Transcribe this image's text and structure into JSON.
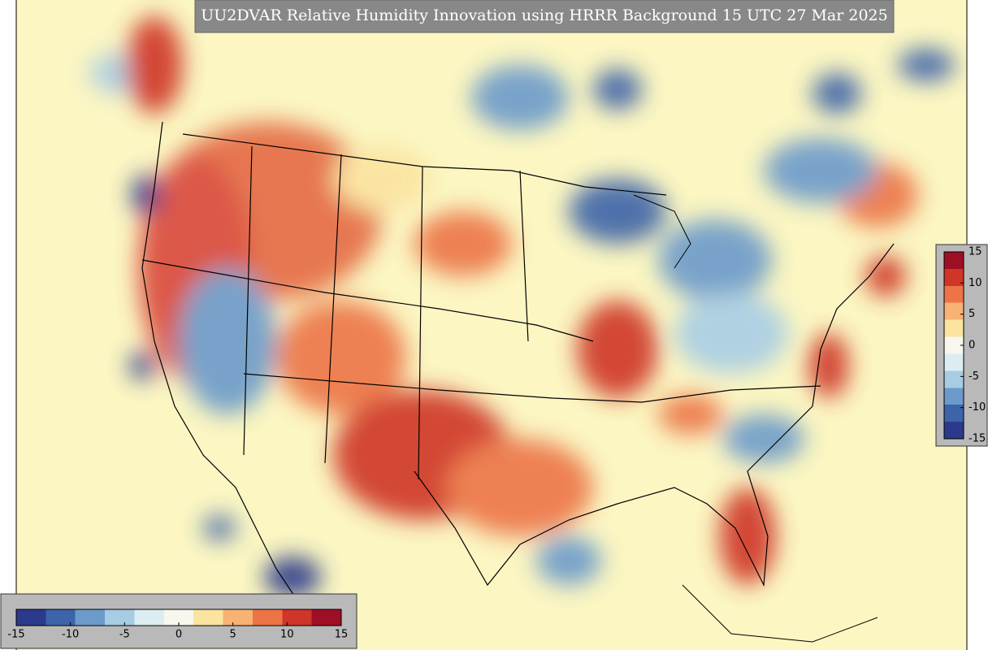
{
  "title": "UU2DVAR Relative Humidity Innovation using HRRR Background 15 UTC 27 Mar 2025",
  "colorbar": {
    "range": [
      -15,
      15
    ],
    "ticks": [
      -15,
      -10,
      -5,
      0,
      5,
      10,
      15
    ],
    "colors": [
      "#2b3a8a",
      "#3d63a9",
      "#6b9acb",
      "#a7cde5",
      "#dcedf2",
      "#f7f7ee",
      "#fbe3a0",
      "#f8b274",
      "#ec7447",
      "#cf3528",
      "#9e0f25"
    ]
  }
}
